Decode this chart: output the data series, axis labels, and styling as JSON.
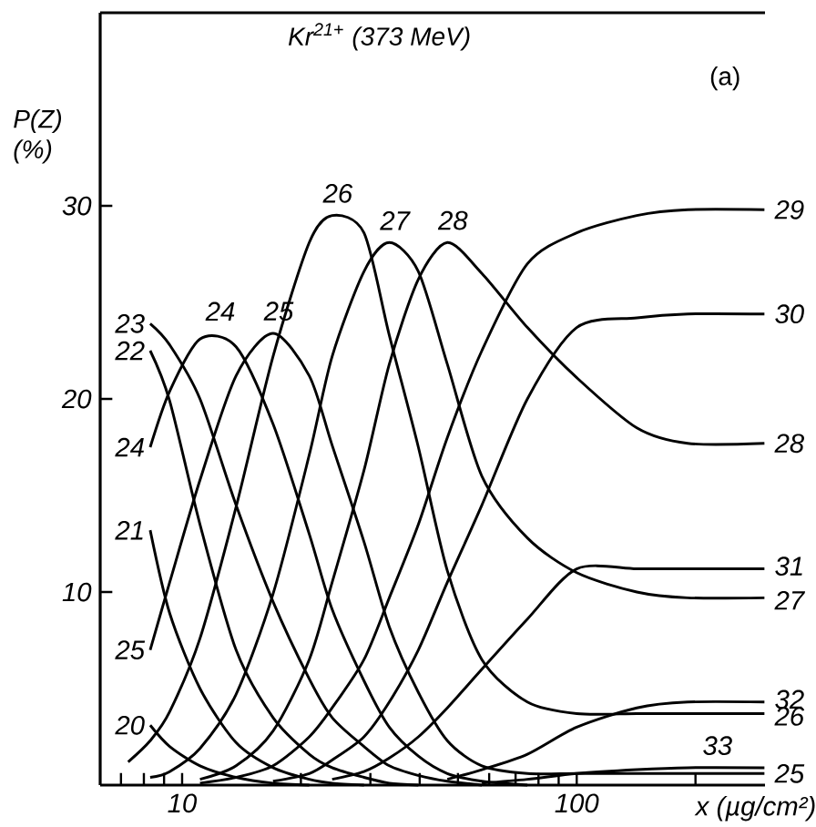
{
  "chart_data": {
    "type": "line",
    "title": "Kr$^{21+}$ (373 MeV)",
    "xlabel": "x (µg/cm²)",
    "ylabel": "P(Z) (%)",
    "log": "x",
    "xlim": [
      6.2,
      300
    ],
    "ylim": [
      0,
      40
    ],
    "xticks": [
      {
        "value": 7,
        "label": null
      },
      {
        "value": 8,
        "label": null
      },
      {
        "value": 9,
        "label": null
      },
      10,
      {
        "value": 20,
        "label": null
      },
      {
        "value": 30,
        "label": null
      },
      {
        "value": 40,
        "label": null
      },
      {
        "value": 50,
        "label": null
      },
      {
        "value": 60,
        "label": null
      },
      {
        "value": 70,
        "label": null
      },
      {
        "value": 80,
        "label": null
      },
      {
        "value": 90,
        "label": null
      },
      100,
      {
        "value": 200,
        "label": null
      }
    ],
    "yticks": [
      10,
      20,
      30
    ],
    "x": [
      7.3,
      8.3,
      9.3,
      11.1,
      13.7,
      17,
      21,
      24,
      28.9,
      33.5,
      39.7,
      47,
      57.5,
      75,
      100,
      142,
      191,
      299
    ],
    "series": [
      {
        "color": "#000000",
        "values": [
          null,
          3.1,
          2.0,
          1.0,
          0.4,
          0.1,
          0,
          null,
          null,
          null,
          null,
          null,
          null,
          null,
          null,
          null,
          null,
          null
        ]
      },
      {
        "color": "#000000",
        "values": [
          null,
          13.2,
          8.9,
          5.0,
          2.2,
          0.9,
          0.3,
          0.1,
          0,
          null,
          null,
          null,
          null,
          null,
          null,
          null,
          null,
          null
        ]
      },
      {
        "color": "#000000",
        "values": [
          null,
          22.5,
          19.9,
          13.5,
          7.0,
          3.5,
          1.6,
          0.9,
          0.4,
          0.1,
          0,
          null,
          null,
          null,
          null,
          null,
          null,
          null
        ]
      },
      {
        "color": "#000000",
        "values": [
          null,
          23.9,
          22.8,
          20.0,
          14.5,
          9.5,
          5.5,
          3.5,
          2.0,
          1.0,
          0.5,
          0.2,
          0,
          null,
          null,
          null,
          null,
          null
        ]
      },
      {
        "color": "#000000",
        "values": [
          null,
          17.5,
          20.4,
          23.1,
          22.7,
          18.7,
          13.0,
          9.1,
          5.4,
          3.0,
          1.5,
          0.6,
          0.2,
          0,
          null,
          null,
          null,
          null
        ]
      },
      {
        "color": "#000000",
        "values": [
          null,
          7.0,
          10.5,
          15.8,
          21.2,
          23.4,
          21.2,
          17.6,
          12.6,
          8.2,
          4.8,
          2.3,
          1.0,
          0.6,
          0.6,
          0.6,
          0.6,
          0.6
        ]
      },
      {
        "color": "#000000",
        "values": [
          1.2,
          2.3,
          3.8,
          7.6,
          14.4,
          22.2,
          28.1,
          29.5,
          28.6,
          23.3,
          17.5,
          11.1,
          6.5,
          4.3,
          3.7,
          3.7,
          3.7,
          3.7
        ]
      },
      {
        "color": "#000000",
        "values": [
          null,
          0.4,
          0.7,
          1.9,
          4.7,
          9.9,
          17.1,
          22.2,
          26.6,
          28.1,
          26.6,
          21.8,
          16.0,
          12.8,
          11.0,
          10.0,
          9.7,
          9.7
        ]
      },
      {
        "color": "#000000",
        "values": [
          null,
          null,
          null,
          0.3,
          1.0,
          2.8,
          6.5,
          10.5,
          16.3,
          21.8,
          26.2,
          28.1,
          26.5,
          23.7,
          21.1,
          18.5,
          17.7,
          17.7
        ]
      },
      {
        "color": "#000000",
        "values": [
          null,
          null,
          null,
          0.1,
          0.4,
          1.0,
          2.5,
          4.0,
          6.5,
          9.7,
          13.5,
          18.0,
          22.5,
          27.0,
          28.6,
          29.5,
          29.8,
          29.8
        ]
      },
      {
        "color": "#000000",
        "values": [
          null,
          null,
          null,
          null,
          null,
          0.2,
          0.6,
          1.3,
          2.5,
          4.3,
          7.0,
          10.5,
          14.5,
          20.0,
          23.7,
          24.2,
          24.4,
          24.4
        ]
      },
      {
        "color": "#000000",
        "values": [
          null,
          null,
          null,
          null,
          null,
          null,
          null,
          0.3,
          0.7,
          1.4,
          2.5,
          4.0,
          6.0,
          8.6,
          11.2,
          11.2,
          11.2,
          11.2
        ]
      },
      {
        "color": "#000000",
        "values": [
          null,
          null,
          null,
          null,
          null,
          null,
          null,
          null,
          null,
          null,
          null,
          0.3,
          0.8,
          1.6,
          3.0,
          4.0,
          4.3,
          4.3
        ]
      },
      {
        "color": "#000000",
        "values": [
          null,
          null,
          null,
          null,
          null,
          null,
          null,
          null,
          null,
          null,
          null,
          null,
          0.1,
          0.3,
          0.6,
          0.8,
          0.9,
          0.9
        ]
      }
    ],
    "annotations": [
      "(a)",
      {
        "text": "23",
        "x": 8.3,
        "y": 23.9
      },
      {
        "text": "22",
        "x": 8.3,
        "y": 22.5
      },
      {
        "text": "24",
        "x": 8.3,
        "y": 17.5
      },
      {
        "text": "21",
        "x": 8.3,
        "y": 13.2
      },
      {
        "text": "25",
        "x": 8.3,
        "y": 7.0
      },
      {
        "text": "20",
        "x": 8.3,
        "y": 3.1
      },
      {
        "text": "24",
        "x": 12.1,
        "y": 23.4
      },
      {
        "text": "25",
        "x": 17,
        "y": 23.4
      },
      {
        "text": "26",
        "x": 24,
        "y": 29.5
      },
      {
        "text": "27",
        "x": 33.5,
        "y": 28.1
      },
      {
        "text": "28",
        "x": 47,
        "y": 28.1
      },
      {
        "text": "29",
        "x": 299,
        "y": 29.8
      },
      {
        "text": "30",
        "x": 299,
        "y": 24.4
      },
      {
        "text": "28",
        "x": 299,
        "y": 17.7
      },
      {
        "text": "31",
        "x": 299,
        "y": 11.2
      },
      {
        "text": "27",
        "x": 299,
        "y": 9.7
      },
      {
        "text": "32",
        "x": 299,
        "y": 4.3
      },
      {
        "text": "26",
        "x": 299,
        "y": 3.7
      },
      {
        "text": "33",
        "x": 220,
        "y": 0.9
      },
      {
        "text": "25",
        "x": 299,
        "y": 0.6
      }
    ]
  }
}
